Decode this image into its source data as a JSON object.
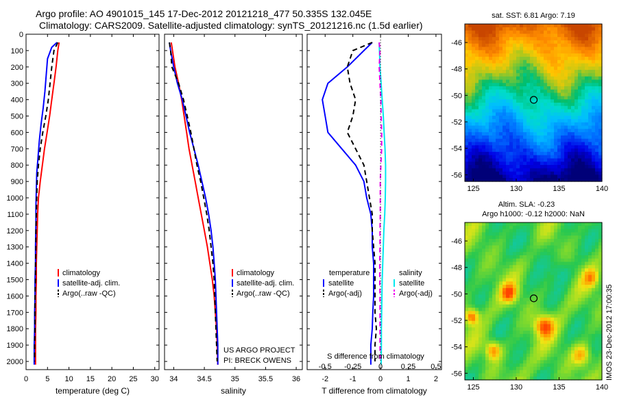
{
  "header": {
    "line1": "Argo profile: AO 4901015_145 17-Dec-2012 20121218_477 50.335S 132.045E",
    "line2": "Climatology: CARS2009. Satellite-adjusted climatology: synTS_20121216.nc (1.5d earlier)"
  },
  "colors": {
    "climatology": "#ff0000",
    "satellite": "#0000ff",
    "argo": "#000000",
    "salinity_satellite": "#00e8ee",
    "salinity_argo": "#ee00ee",
    "reference_line": "#000000"
  },
  "chart_data": [
    {
      "id": "temperature",
      "type": "line",
      "xlabel": "temperature (deg C)",
      "xlim": [
        0,
        31
      ],
      "xticks": [
        0,
        5,
        10,
        15,
        20,
        25,
        30
      ],
      "xtick_labels": [
        "0",
        "5",
        "10",
        "15",
        "20",
        "25",
        "30"
      ],
      "ylim": [
        2050,
        0
      ],
      "yticks": [
        0,
        100,
        200,
        300,
        400,
        500,
        600,
        700,
        800,
        900,
        1000,
        1100,
        1200,
        1300,
        1400,
        1500,
        1600,
        1700,
        1800,
        1900,
        2000
      ],
      "legend": [
        "climatology",
        "satellite-adj. clim.",
        "Argo(..raw -QC)"
      ],
      "series": [
        {
          "name": "climatology",
          "color": "#ff0000",
          "dash": "solid",
          "x": [
            7.7,
            7.4,
            7.0,
            6.5,
            6.0,
            5.5,
            4.9,
            4.3,
            3.8,
            3.3,
            2.9,
            2.7,
            2.6,
            2.5,
            2.4,
            2.4,
            2.3,
            2.3,
            2.2,
            2.2,
            2.2
          ],
          "y": [
            50,
            100,
            200,
            300,
            400,
            500,
            600,
            700,
            800,
            900,
            1000,
            1100,
            1200,
            1300,
            1400,
            1500,
            1600,
            1700,
            1800,
            1900,
            2020
          ]
        },
        {
          "name": "satellite-adj. clim.",
          "color": "#0000ff",
          "dash": "solid",
          "x": [
            7.2,
            6.0,
            5.0,
            4.7,
            4.4,
            4.0,
            3.5,
            3.1,
            2.8,
            2.5,
            2.4,
            2.3,
            2.3,
            2.2,
            2.2,
            2.1,
            2.1,
            2.0,
            2.0,
            1.9,
            1.9
          ],
          "y": [
            50,
            80,
            150,
            250,
            350,
            450,
            550,
            650,
            750,
            850,
            950,
            1050,
            1150,
            1300,
            1400,
            1500,
            1600,
            1700,
            1800,
            1900,
            2020
          ]
        },
        {
          "name": "Argo(..raw -QC)",
          "color": "#000000",
          "dash": "dashed",
          "x": [
            7.4,
            6.5,
            6.0,
            5.6,
            5.2,
            4.6,
            3.9,
            3.3,
            2.9,
            2.6,
            2.5,
            2.4,
            2.3,
            2.3,
            2.2,
            2.2,
            2.1,
            2.1,
            2.1,
            2.0,
            2.0
          ],
          "y": [
            50,
            100,
            200,
            300,
            400,
            500,
            600,
            700,
            800,
            900,
            1000,
            1100,
            1200,
            1300,
            1400,
            1500,
            1600,
            1700,
            1800,
            1900,
            2000
          ]
        }
      ]
    },
    {
      "id": "salinity",
      "type": "line",
      "xlabel": "salinity",
      "xlim": [
        33.85,
        36.1
      ],
      "xticks": [
        34,
        34.5,
        35,
        35.5,
        36
      ],
      "xtick_labels": [
        "34",
        "34.5",
        "35",
        "35.5",
        "36"
      ],
      "ylim": [
        2050,
        0
      ],
      "legend": [
        "climatology",
        "satellite-adj. clim.",
        "Argo(..raw -QC)"
      ],
      "annotations": [
        "US ARGO PROJECT",
        "PI: BRECK OWENS"
      ],
      "series": [
        {
          "name": "climatology",
          "color": "#ff0000",
          "dash": "solid",
          "x": [
            33.96,
            33.98,
            34.02,
            34.08,
            34.13,
            34.17,
            34.21,
            34.25,
            34.3,
            34.35,
            34.4,
            34.45,
            34.5,
            34.55,
            34.59,
            34.63,
            34.66,
            34.68,
            34.7,
            34.71,
            34.72
          ],
          "y": [
            50,
            100,
            200,
            300,
            400,
            500,
            600,
            700,
            800,
            900,
            1000,
            1100,
            1200,
            1300,
            1400,
            1500,
            1600,
            1700,
            1800,
            1900,
            2020
          ]
        },
        {
          "name": "satellite-adj. clim.",
          "color": "#0000ff",
          "dash": "solid",
          "x": [
            33.93,
            33.95,
            34.0,
            34.06,
            34.14,
            34.2,
            34.26,
            34.33,
            34.4,
            34.46,
            34.52,
            34.57,
            34.61,
            34.64,
            34.66,
            34.68,
            34.69,
            34.7,
            34.71,
            34.72,
            34.72
          ],
          "y": [
            50,
            100,
            200,
            300,
            400,
            500,
            600,
            700,
            800,
            900,
            1000,
            1100,
            1200,
            1300,
            1400,
            1500,
            1600,
            1700,
            1800,
            1900,
            2020
          ]
        },
        {
          "name": "Argo(..raw -QC)",
          "color": "#000000",
          "dash": "dashed",
          "x": [
            33.93,
            33.95,
            33.97,
            34.08,
            34.16,
            34.22,
            34.28,
            34.33,
            34.38,
            34.44,
            34.49,
            34.54,
            34.58,
            34.61,
            34.64,
            34.66,
            34.67,
            34.68,
            34.69,
            34.7,
            34.71
          ],
          "y": [
            50,
            100,
            200,
            300,
            400,
            500,
            600,
            700,
            800,
            900,
            1000,
            1100,
            1200,
            1300,
            1400,
            1500,
            1600,
            1700,
            1800,
            1900,
            2000
          ]
        }
      ]
    },
    {
      "id": "difference",
      "type": "line",
      "xlabel": "T difference from climatology",
      "top_label": "S difference from climatology",
      "xlim": [
        -2.65,
        2.2
      ],
      "xticks": [
        -2,
        -1,
        0,
        1,
        2
      ],
      "xtick_labels": [
        "-2",
        "-1",
        "0",
        "1",
        "2"
      ],
      "s_ticks": [
        -0.5,
        -0.25,
        0,
        0.25,
        0.5
      ],
      "s_tick_labels": [
        "-0.5",
        "-0.25",
        "0",
        "0.25",
        "0.5"
      ],
      "ylim": [
        2050,
        0
      ],
      "legend_groups": [
        {
          "title": "temperature",
          "items": [
            "satellite",
            "Argo(-adj)"
          ]
        },
        {
          "title": "salinity",
          "items": [
            "satellite",
            "Argo(-adj)"
          ]
        }
      ],
      "series": [
        {
          "name": "temperature satellite",
          "color": "#0000ff",
          "dash": "solid",
          "x": [
            -0.3,
            -0.6,
            -1.2,
            -1.9,
            -2.1,
            -2.0,
            -1.9,
            -1.4,
            -0.9,
            -0.6,
            -0.5,
            -0.35,
            -0.3,
            -0.3,
            -0.25,
            -0.25,
            -0.25,
            -0.28,
            -0.3,
            -0.35,
            -0.35
          ],
          "y": [
            50,
            100,
            200,
            300,
            400,
            500,
            600,
            700,
            800,
            900,
            1000,
            1100,
            1200,
            1300,
            1400,
            1500,
            1600,
            1700,
            1800,
            1900,
            2020
          ]
        },
        {
          "name": "temperature Argo(-adj)",
          "color": "#000000",
          "dash": "dashed",
          "x": [
            -0.3,
            -1.0,
            -1.2,
            -1.1,
            -0.9,
            -1.0,
            -1.2,
            -0.9,
            -0.6,
            -0.5,
            -0.4,
            -0.3,
            -0.3,
            -0.25,
            -0.2,
            -0.2,
            -0.2,
            -0.2,
            -0.15,
            -0.2,
            -0.2
          ],
          "y": [
            50,
            100,
            200,
            300,
            400,
            500,
            600,
            700,
            800,
            900,
            1000,
            1100,
            1200,
            1300,
            1400,
            1500,
            1600,
            1700,
            1800,
            1900,
            2000
          ]
        },
        {
          "name": "salinity satellite",
          "color": "#00e8ee",
          "dash": "solid",
          "x": [
            -0.05,
            -0.04,
            -0.02,
            0.02,
            0.06,
            0.1,
            0.13,
            0.16,
            0.18,
            0.18,
            0.17,
            0.15,
            0.12,
            0.1,
            0.08,
            0.06,
            0.05,
            0.04,
            0.03,
            0.03,
            0.02
          ],
          "y": [
            50,
            100,
            200,
            300,
            400,
            500,
            600,
            700,
            800,
            900,
            1000,
            1100,
            1200,
            1300,
            1400,
            1500,
            1600,
            1700,
            1800,
            1900,
            2020
          ]
        },
        {
          "name": "salinity Argo(-adj)",
          "color": "#ee00ee",
          "dash": "dashed",
          "x": [
            -0.05,
            -0.02,
            -0.05,
            -0.02,
            0.01,
            0.02,
            0.04,
            0.04,
            0.01,
            -0.01,
            -0.01,
            -0.01,
            -0.02,
            -0.02,
            -0.03,
            -0.03,
            -0.02,
            -0.02,
            -0.02,
            -0.02,
            -0.01
          ],
          "y": [
            50,
            100,
            200,
            300,
            400,
            500,
            600,
            700,
            800,
            900,
            1000,
            1100,
            1200,
            1300,
            1400,
            1500,
            1600,
            1700,
            1800,
            1900,
            2000
          ]
        }
      ]
    },
    {
      "id": "sst_map",
      "type": "heatmap",
      "title": "sat. SST: 6.81  Argo: 7.19",
      "xlim": [
        124,
        140
      ],
      "ylim": [
        -56.5,
        -44.6
      ],
      "xticks": [
        125,
        130,
        135,
        140
      ],
      "xtick_labels": [
        "125",
        "130",
        "135",
        "140"
      ],
      "yticks": [
        -46,
        -48,
        -50,
        -52,
        -54,
        -56
      ],
      "ytick_labels": [
        "-46",
        "-48",
        "-50",
        "-52",
        "-54",
        "-56"
      ],
      "marker": {
        "lon": 132.045,
        "lat": -50.335
      }
    },
    {
      "id": "sla_map",
      "type": "heatmap",
      "title": "Altim. SLA: -0.23",
      "subtitle": "Argo h1000: -0.12 h2000: NaN",
      "side_label": "IMOS 23-Dec-2012 17:00:35",
      "xlim": [
        124,
        140
      ],
      "ylim": [
        -56.5,
        -44.6
      ],
      "xticks": [
        125,
        130,
        135,
        140
      ],
      "xtick_labels": [
        "125",
        "130",
        "135",
        "140"
      ],
      "yticks": [
        -46,
        -48,
        -50,
        -52,
        -54,
        -56
      ],
      "ytick_labels": [
        "-46",
        "-48",
        "-50",
        "-52",
        "-54",
        "-56"
      ],
      "marker": {
        "lon": 132.045,
        "lat": -50.335
      }
    }
  ]
}
